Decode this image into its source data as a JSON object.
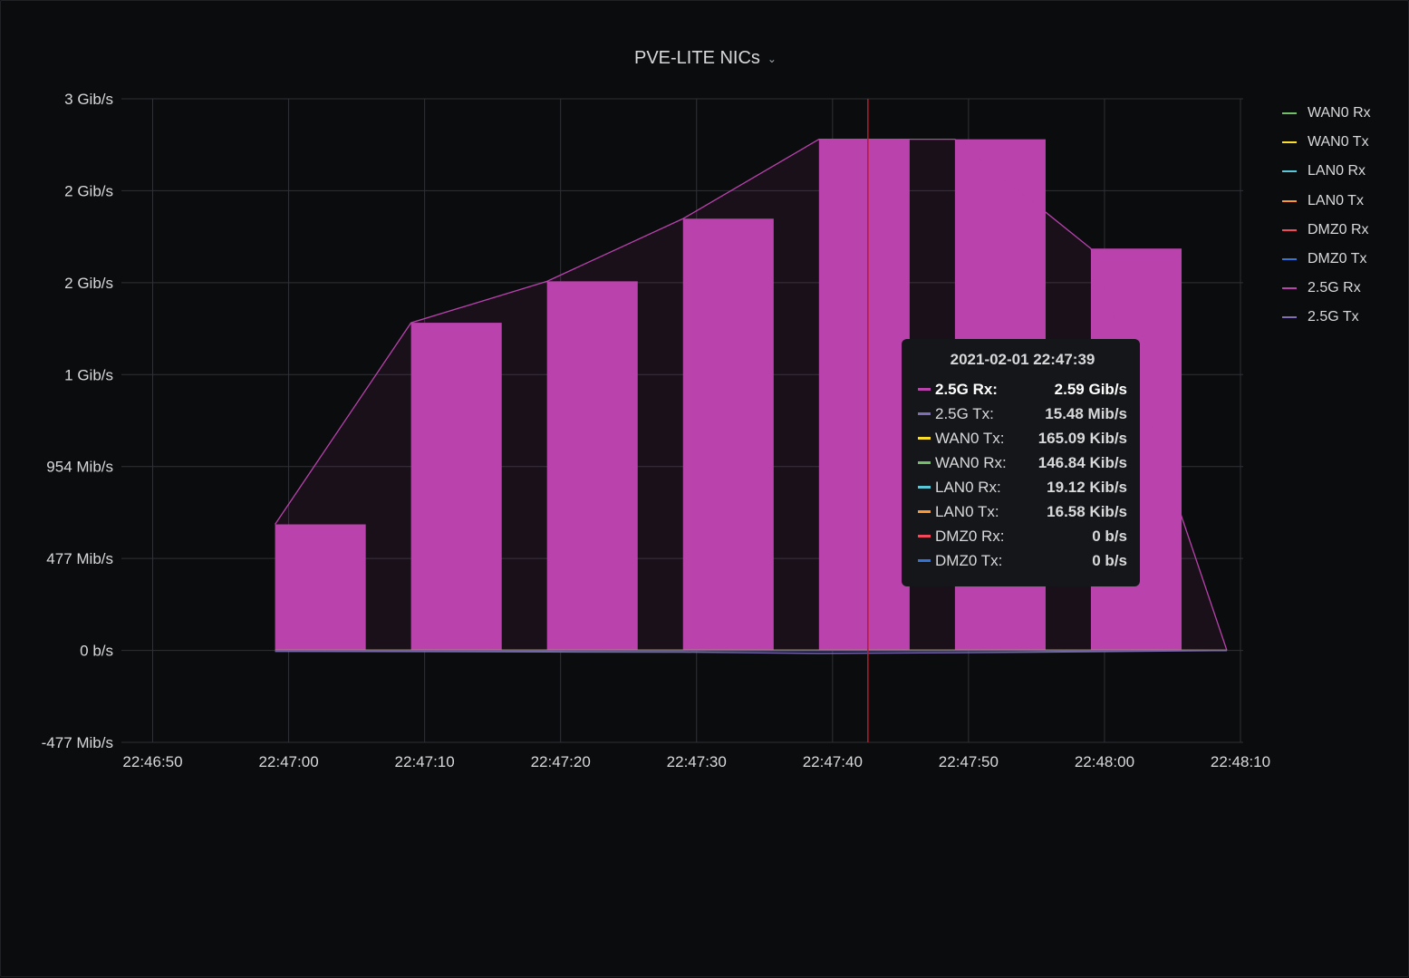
{
  "panel": {
    "title": "PVE-LITE NICs",
    "chevron_icon": "chevron-down-icon"
  },
  "colors": {
    "background": "#0b0c0e",
    "grid": "#2f3136",
    "text": "#d8d9da",
    "bar_fill": "#b942ad",
    "bar_line": "#b942ad",
    "crosshair": "#c4162a"
  },
  "chart_data": {
    "type": "bar",
    "title": "PVE-LITE NICs",
    "xlabel": "",
    "ylabel": "",
    "x_ticks": [
      "22:46:50",
      "22:47:00",
      "22:47:10",
      "22:47:20",
      "22:47:30",
      "22:47:40",
      "22:47:50",
      "22:48:00",
      "22:48:10"
    ],
    "y_ticks": [
      "-477 Mib/s",
      "0 b/s",
      "477 Mib/s",
      "954 Mib/s",
      "1 Gib/s",
      "2 Gib/s",
      "2 Gib/s",
      "3 Gib/s"
    ],
    "y_tick_values_mibps": [
      -477,
      0,
      477,
      954,
      1431,
      1908,
      2385,
      2862
    ],
    "ylim_mibps": [
      -477,
      2862
    ],
    "x_range": [
      "22:46:50",
      "22:48:10"
    ],
    "grid": true,
    "legend_placement": "right",
    "series": [
      {
        "name": "WAN0 Rx",
        "color": "#73bf69",
        "x": [
          "22:47:00",
          "22:47:10",
          "22:47:20",
          "22:47:30",
          "22:47:40",
          "22:47:50",
          "22:48:00",
          "22:48:10"
        ],
        "values_mibps": [
          0.1,
          0.1,
          0.1,
          0.1,
          0.14,
          0.1,
          0.1,
          0
        ]
      },
      {
        "name": "WAN0 Tx",
        "color": "#fade2a",
        "x": [
          "22:47:00",
          "22:47:10",
          "22:47:20",
          "22:47:30",
          "22:47:40",
          "22:47:50",
          "22:48:00",
          "22:48:10"
        ],
        "values_mibps": [
          0.1,
          0.1,
          0.1,
          0.1,
          0.16,
          0.1,
          0.1,
          0
        ]
      },
      {
        "name": "LAN0 Rx",
        "color": "#5ac8d8",
        "x": [
          "22:47:00",
          "22:47:10",
          "22:47:20",
          "22:47:30",
          "22:47:40",
          "22:47:50",
          "22:48:00",
          "22:48:10"
        ],
        "values_mibps": [
          0,
          0,
          0,
          0,
          0.02,
          0,
          0,
          0
        ]
      },
      {
        "name": "LAN0 Tx",
        "color": "#ff9830",
        "x": [
          "22:47:00",
          "22:47:10",
          "22:47:20",
          "22:47:30",
          "22:47:40",
          "22:47:50",
          "22:48:00",
          "22:48:10"
        ],
        "values_mibps": [
          0,
          0,
          0,
          0,
          0.02,
          0,
          0,
          0
        ]
      },
      {
        "name": "DMZ0 Rx",
        "color": "#f2495c",
        "x": [
          "22:47:00",
          "22:47:10",
          "22:47:20",
          "22:47:30",
          "22:47:40",
          "22:47:50",
          "22:48:00",
          "22:48:10"
        ],
        "values_mibps": [
          0,
          0,
          0,
          0,
          0,
          0,
          0,
          0
        ]
      },
      {
        "name": "DMZ0 Tx",
        "color": "#3274d9",
        "x": [
          "22:47:00",
          "22:47:10",
          "22:47:20",
          "22:47:30",
          "22:47:40",
          "22:47:50",
          "22:48:00",
          "22:48:10"
        ],
        "values_mibps": [
          0,
          0,
          0,
          0,
          0,
          0,
          0,
          0
        ]
      },
      {
        "name": "2.5G Rx",
        "color": "#b942ad",
        "x": [
          "22:47:00",
          "22:47:10",
          "22:47:20",
          "22:47:30",
          "22:47:40",
          "22:47:50",
          "22:48:00",
          "22:48:10"
        ],
        "values_mibps": [
          654,
          1700,
          1915,
          2240,
          2652,
          2652,
          2085,
          0
        ]
      },
      {
        "name": "2.5G Tx",
        "color": "#806eb7",
        "x": [
          "22:47:00",
          "22:47:10",
          "22:47:20",
          "22:47:30",
          "22:47:40",
          "22:47:50",
          "22:48:00",
          "22:48:10"
        ],
        "values_mibps": [
          -5,
          -6,
          -8,
          -9,
          -15.5,
          -12,
          -7,
          0
        ]
      }
    ],
    "crosshair_x": "22:47:42.6",
    "tooltip": {
      "time": "2021-02-01 22:47:39",
      "rows": [
        {
          "name": "2.5G Rx:",
          "value": "2.59 Gib/s",
          "color": "#b942ad",
          "highlight": true
        },
        {
          "name": "2.5G Tx:",
          "value": "15.48 Mib/s",
          "color": "#806eb7"
        },
        {
          "name": "WAN0 Tx:",
          "value": "165.09 Kib/s",
          "color": "#fade2a"
        },
        {
          "name": "WAN0 Rx:",
          "value": "146.84 Kib/s",
          "color": "#73bf69"
        },
        {
          "name": "LAN0 Rx:",
          "value": "19.12 Kib/s",
          "color": "#5ac8d8"
        },
        {
          "name": "LAN0 Tx:",
          "value": "16.58 Kib/s",
          "color": "#ff9830"
        },
        {
          "name": "DMZ0 Rx:",
          "value": "0 b/s",
          "color": "#f2495c"
        },
        {
          "name": "DMZ0 Tx:",
          "value": "0 b/s",
          "color": "#3274d9"
        }
      ]
    }
  }
}
